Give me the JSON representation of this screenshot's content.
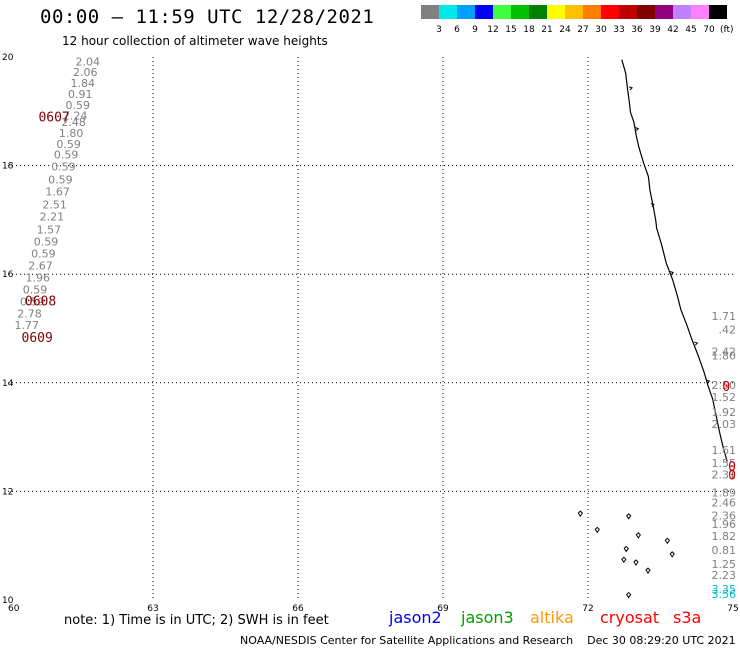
{
  "title": "00:00 – 11:59 UTC 12/28/2021",
  "subtitle": "12 hour collection of altimeter wave heights",
  "scale": {
    "colors": [
      "#808080",
      "#00e8e8",
      "#00a0ff",
      "#0000ff",
      "#40ff40",
      "#00c000",
      "#008000",
      "#ffff00",
      "#ffc000",
      "#ff8000",
      "#ff0000",
      "#c00000",
      "#800000",
      "#900080",
      "#c080ff",
      "#ff80ff",
      "#000000"
    ],
    "labels": [
      "3",
      "6",
      "9",
      "12",
      "15",
      "18",
      "21",
      "24",
      "27",
      "30",
      "33",
      "36",
      "39",
      "42",
      "45",
      "70"
    ],
    "unit": "(ft)"
  },
  "map": {
    "lon_range": [
      60,
      75
    ],
    "lat_range": [
      10,
      20
    ],
    "x_ticks": [
      "60",
      "63",
      "66",
      "69",
      "72",
      "75"
    ],
    "y_ticks": [
      "10",
      "12",
      "14",
      "16",
      "18",
      "20"
    ],
    "grid": "dotted"
  },
  "tracks": {
    "west": {
      "color": "#808080",
      "readings": [
        {
          "lat": 19.92,
          "text": "2.04"
        },
        {
          "lat": 19.72,
          "text": "2.06"
        },
        {
          "lat": 19.52,
          "text": "1.84"
        },
        {
          "lat": 19.32,
          "text": "0.91"
        },
        {
          "lat": 19.12,
          "text": "0.59"
        },
        {
          "lat": 18.92,
          "text": "2.24"
        },
        {
          "lat": 18.8,
          "text": "2.48"
        },
        {
          "lat": 18.6,
          "text": "1.80"
        },
        {
          "lat": 18.4,
          "text": "0.59"
        },
        {
          "lat": 18.2,
          "text": "0.59"
        },
        {
          "lat": 17.98,
          "text": "0.59"
        },
        {
          "lat": 17.74,
          "text": "0.59"
        },
        {
          "lat": 17.52,
          "text": "1.67"
        },
        {
          "lat": 17.28,
          "text": "2.51"
        },
        {
          "lat": 17.06,
          "text": "2.21"
        },
        {
          "lat": 16.82,
          "text": "1.57"
        },
        {
          "lat": 16.6,
          "text": "0.59"
        },
        {
          "lat": 16.38,
          "text": "0.59"
        },
        {
          "lat": 16.16,
          "text": "2.67"
        },
        {
          "lat": 15.94,
          "text": "1.96"
        },
        {
          "lat": 15.72,
          "text": "0.59"
        },
        {
          "lat": 15.5,
          "text": "0.59"
        },
        {
          "lat": 15.28,
          "text": "2.78"
        },
        {
          "lat": 15.06,
          "text": "1.77"
        }
      ]
    },
    "east": {
      "color": "#808080",
      "readings": [
        {
          "lat": 15.23,
          "text": "1.71"
        },
        {
          "lat": 14.98,
          "text": ".42"
        },
        {
          "lat": 14.58,
          "text": "2.42"
        },
        {
          "lat": 14.5,
          "text": "1.80"
        },
        {
          "lat": 13.96,
          "text": "2.50"
        },
        {
          "lat": 13.74,
          "text": "1.52"
        },
        {
          "lat": 13.46,
          "text": "1.92"
        },
        {
          "lat": 13.24,
          "text": "2.03"
        },
        {
          "lat": 12.76,
          "text": "1.61"
        },
        {
          "lat": 12.52,
          "text": "1.55"
        },
        {
          "lat": 12.31,
          "text": "2.31"
        },
        {
          "lat": 11.98,
          "text": "1.89"
        },
        {
          "lat": 11.8,
          "text": "2.46"
        },
        {
          "lat": 11.56,
          "text": "2.36"
        },
        {
          "lat": 11.4,
          "text": "1.96"
        },
        {
          "lat": 11.18,
          "text": "1.82"
        },
        {
          "lat": 10.92,
          "text": "0.81"
        },
        {
          "lat": 10.66,
          "text": "1.25"
        },
        {
          "lat": 10.46,
          "text": "2.23"
        },
        {
          "lat": 10.2,
          "text": "3.35"
        },
        {
          "lat": 10.11,
          "text": "3.56"
        }
      ]
    }
  },
  "times": [
    {
      "text": "0607",
      "lon": 60.63,
      "lat": 18.9,
      "color": "#800000"
    },
    {
      "text": "0608",
      "lon": 60.35,
      "lat": 15.52,
      "color": "#800000"
    },
    {
      "text": "0609",
      "lon": 60.28,
      "lat": 14.84,
      "color": "#800000"
    },
    {
      "text": "0",
      "lon": 74.78,
      "lat": 13.94,
      "color": "#d00000"
    },
    {
      "text": "0",
      "lon": 74.9,
      "lat": 12.47,
      "color": "#d00000"
    },
    {
      "text": "0",
      "lon": 74.9,
      "lat": 12.31,
      "color": "#d00000"
    }
  ],
  "note": "note: 1) Time is in UTC; 2) SWH is in feet",
  "legend": [
    {
      "text": "jason2",
      "color": "#0000ff"
    },
    {
      "text": "jason3",
      "color": "#00a000"
    },
    {
      "text": "altika",
      "color": "#ff9900"
    },
    {
      "text": "cryosat",
      "color": "#ff0000"
    },
    {
      "text": "s3a",
      "color": "#ff0000"
    }
  ],
  "footer": "NOAA/NESDIS Center for Satellite Applications and Research    Dec 30 08:29:20 UTC 2021"
}
